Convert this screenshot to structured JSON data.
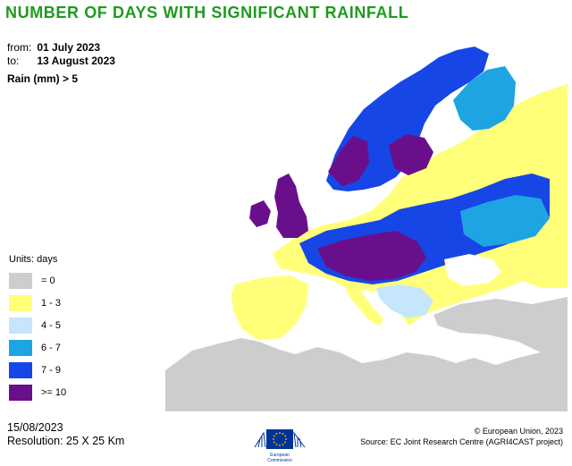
{
  "title": "NUMBER OF DAYS WITH SIGNIFICANT RAINFALL",
  "period": {
    "from_label": "from:",
    "from_value": "01 July 2023",
    "to_label": "to:",
    "to_value": "13 August 2023"
  },
  "threshold": "Rain (mm) > 5",
  "legend": {
    "units": "Units: days",
    "classes": [
      {
        "label": "= 0",
        "color": "#cdcdcd"
      },
      {
        "label": "1 - 3",
        "color": "#ffff7a"
      },
      {
        "label": "4 - 5",
        "color": "#c6e6fb"
      },
      {
        "label": "6 - 7",
        "color": "#1ea4e2"
      },
      {
        "label": "7 - 9",
        "color": "#1646e6"
      },
      {
        "label": ">= 10",
        "color": "#6a0f8c"
      }
    ]
  },
  "footer": {
    "date": "15/08/2023",
    "resolution": "Resolution: 25 X 25 Km",
    "copyright": "© European Union, 2023",
    "source": "Source: EC Joint Research Centre (AGRI4CAST project)"
  },
  "logo": {
    "line1": "European",
    "line2": "Commission"
  },
  "colors": {
    "title": "#1f9a1f",
    "flag": "#003399",
    "star": "#ffcc00"
  }
}
